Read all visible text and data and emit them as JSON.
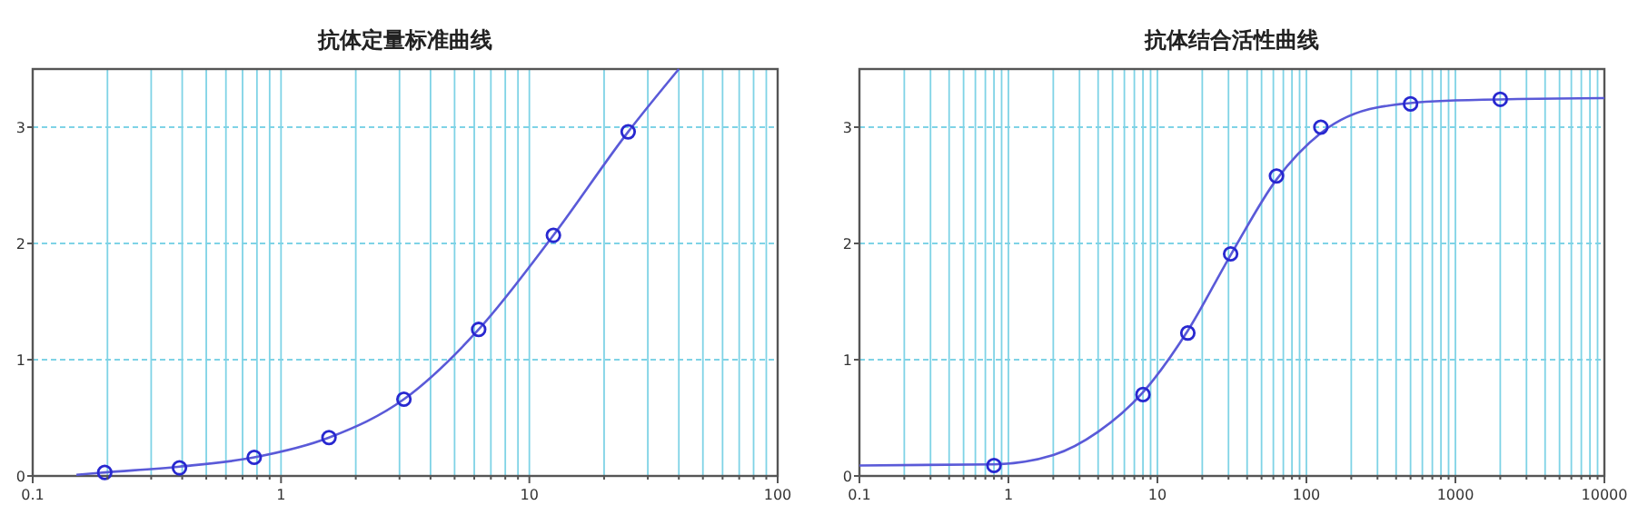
{
  "chart_data": [
    {
      "type": "scatter",
      "title": "抗体定量标准曲线",
      "log": "x",
      "grid": true,
      "xlim": [
        0.1,
        100
      ],
      "ylim": [
        0,
        3.5
      ],
      "xticks": [
        0.1,
        {
          "value": 0.2,
          "label": null
        },
        {
          "value": 0.3,
          "label": null
        },
        {
          "value": 0.4,
          "label": null
        },
        {
          "value": 0.5,
          "label": null
        },
        {
          "value": 0.6,
          "label": null
        },
        {
          "value": 0.7,
          "label": null
        },
        {
          "value": 0.8,
          "label": null
        },
        {
          "value": 0.9,
          "label": null
        },
        1,
        {
          "value": 2,
          "label": null
        },
        {
          "value": 3,
          "label": null
        },
        {
          "value": 4,
          "label": null
        },
        {
          "value": 5,
          "label": null
        },
        {
          "value": 6,
          "label": null
        },
        {
          "value": 7,
          "label": null
        },
        {
          "value": 8,
          "label": null
        },
        {
          "value": 9,
          "label": null
        },
        10,
        {
          "value": 20,
          "label": null
        },
        {
          "value": 30,
          "label": null
        },
        {
          "value": 40,
          "label": null
        },
        {
          "value": 50,
          "label": null
        },
        {
          "value": 60,
          "label": null
        },
        {
          "value": 70,
          "label": null
        },
        {
          "value": 80,
          "label": null
        },
        {
          "value": 90,
          "label": null
        },
        100
      ],
      "yticks": [
        0,
        1,
        2,
        3
      ],
      "series": [
        {
          "type": "line",
          "color": "#5a5ad8",
          "line_style": "solid",
          "x": [
            0.15,
            0.195,
            0.39,
            0.78,
            1.56,
            3.125,
            6.25,
            12.5,
            25,
            40
          ],
          "values": [
            0.01,
            0.03,
            0.08,
            0.16,
            0.33,
            0.66,
            1.26,
            2.07,
            2.96,
            3.5
          ]
        },
        {
          "color": "#2828d0",
          "marker": "circle",
          "x": [
            0.195,
            0.39,
            0.78,
            1.56,
            3.125,
            6.25,
            12.5,
            25
          ],
          "values": [
            0.03,
            0.07,
            0.16,
            0.33,
            0.66,
            1.26,
            2.07,
            2.96
          ]
        }
      ]
    },
    {
      "type": "scatter",
      "title": "抗体结合活性曲线",
      "log": "x",
      "grid": true,
      "xlim": [
        0.1,
        10000
      ],
      "ylim": [
        0,
        3.5
      ],
      "xticks": [
        0.1,
        {
          "value": 0.2,
          "label": null
        },
        {
          "value": 0.3,
          "label": null
        },
        {
          "value": 0.4,
          "label": null
        },
        {
          "value": 0.5,
          "label": null
        },
        {
          "value": 0.6,
          "label": null
        },
        {
          "value": 0.7,
          "label": null
        },
        {
          "value": 0.8,
          "label": null
        },
        {
          "value": 0.9,
          "label": null
        },
        1,
        {
          "value": 2,
          "label": null
        },
        {
          "value": 3,
          "label": null
        },
        {
          "value": 4,
          "label": null
        },
        {
          "value": 5,
          "label": null
        },
        {
          "value": 6,
          "label": null
        },
        {
          "value": 7,
          "label": null
        },
        {
          "value": 8,
          "label": null
        },
        {
          "value": 9,
          "label": null
        },
        10,
        {
          "value": 20,
          "label": null
        },
        {
          "value": 30,
          "label": null
        },
        {
          "value": 40,
          "label": null
        },
        {
          "value": 50,
          "label": null
        },
        {
          "value": 60,
          "label": null
        },
        {
          "value": 70,
          "label": null
        },
        {
          "value": 80,
          "label": null
        },
        {
          "value": 90,
          "label": null
        },
        100,
        {
          "value": 200,
          "label": null
        },
        {
          "value": 300,
          "label": null
        },
        {
          "value": 400,
          "label": null
        },
        {
          "value": 500,
          "label": null
        },
        {
          "value": 600,
          "label": null
        },
        {
          "value": 700,
          "label": null
        },
        {
          "value": 800,
          "label": null
        },
        {
          "value": 900,
          "label": null
        },
        1000,
        {
          "value": 2000,
          "label": null
        },
        {
          "value": 3000,
          "label": null
        },
        {
          "value": 4000,
          "label": null
        },
        {
          "value": 5000,
          "label": null
        },
        {
          "value": 6000,
          "label": null
        },
        {
          "value": 7000,
          "label": null
        },
        {
          "value": 8000,
          "label": null
        },
        {
          "value": 9000,
          "label": null
        },
        10000
      ],
      "yticks": [
        0,
        1,
        2,
        3
      ],
      "series": [
        {
          "type": "line",
          "color": "#5a5ad8",
          "line_style": "solid",
          "x": [
            0.1,
            0.8,
            2,
            4,
            8,
            16,
            31,
            63,
            125,
            300,
            1000,
            10000
          ],
          "values": [
            0.09,
            0.1,
            0.18,
            0.38,
            0.72,
            1.25,
            1.9,
            2.55,
            2.95,
            3.17,
            3.23,
            3.25
          ]
        },
        {
          "color": "#2828d0",
          "marker": "circle",
          "x": [
            0.8,
            8,
            16,
            31,
            63,
            125,
            500,
            2000
          ],
          "values": [
            0.09,
            0.7,
            1.23,
            1.91,
            2.58,
            3.0,
            3.2,
            3.24
          ]
        }
      ]
    }
  ]
}
